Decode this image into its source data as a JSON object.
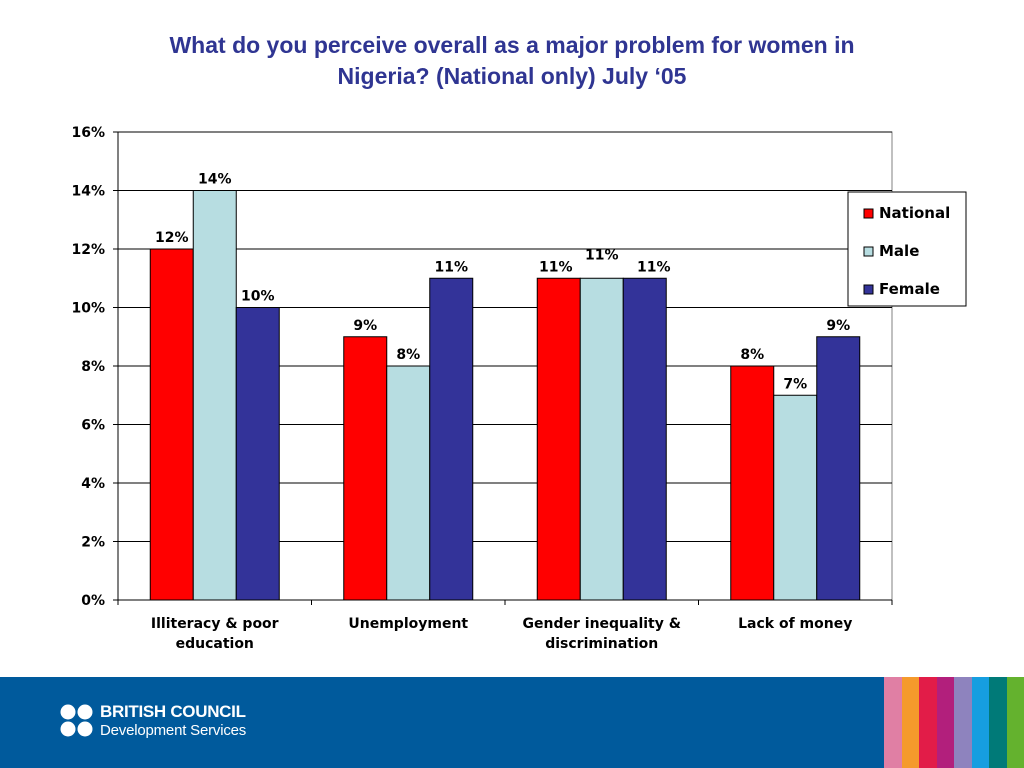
{
  "title_lines": [
    "What do you perceive overall as a major problem for women in",
    "Nigeria? (National only) July ‘05"
  ],
  "chart_data": {
    "type": "bar",
    "title": "What do you perceive overall as a major problem for women in Nigeria? (National only) July ‘05",
    "categories": [
      [
        "Illiteracy & poor",
        "education"
      ],
      [
        "Unemployment"
      ],
      [
        "Gender inequality &",
        "discrimination"
      ],
      [
        "Lack of money"
      ]
    ],
    "series": [
      {
        "name": "National",
        "color": "#ff0000",
        "values": [
          12,
          9,
          11,
          8
        ],
        "labels": [
          "12%",
          "9%",
          "11%",
          "8%"
        ]
      },
      {
        "name": "Male",
        "color": "#b7dde1",
        "values": [
          14,
          8,
          11,
          7
        ],
        "labels": [
          "14%",
          "8%",
          "11%",
          "7%"
        ]
      },
      {
        "name": "Female",
        "color": "#333399",
        "values": [
          10,
          11,
          11,
          9
        ],
        "labels": [
          "10%",
          "11%",
          "11%",
          "9%"
        ]
      }
    ],
    "ylim": [
      0,
      16
    ],
    "y_ticks": [
      0,
      2,
      4,
      6,
      8,
      10,
      12,
      14,
      16
    ],
    "y_tick_labels": [
      "0%",
      "2%",
      "4%",
      "6%",
      "8%",
      "10%",
      "12%",
      "14%",
      "16%"
    ],
    "grid": true,
    "legend_position": "right"
  },
  "footer": {
    "logo_line1": "BRITISH COUNCIL",
    "logo_line2": "Development Services",
    "stripe_colors": [
      "#e07fa4",
      "#f59a2c",
      "#e21c48",
      "#b21f7c",
      "#8e83be",
      "#169ee0",
      "#007a78",
      "#64b22e"
    ]
  }
}
